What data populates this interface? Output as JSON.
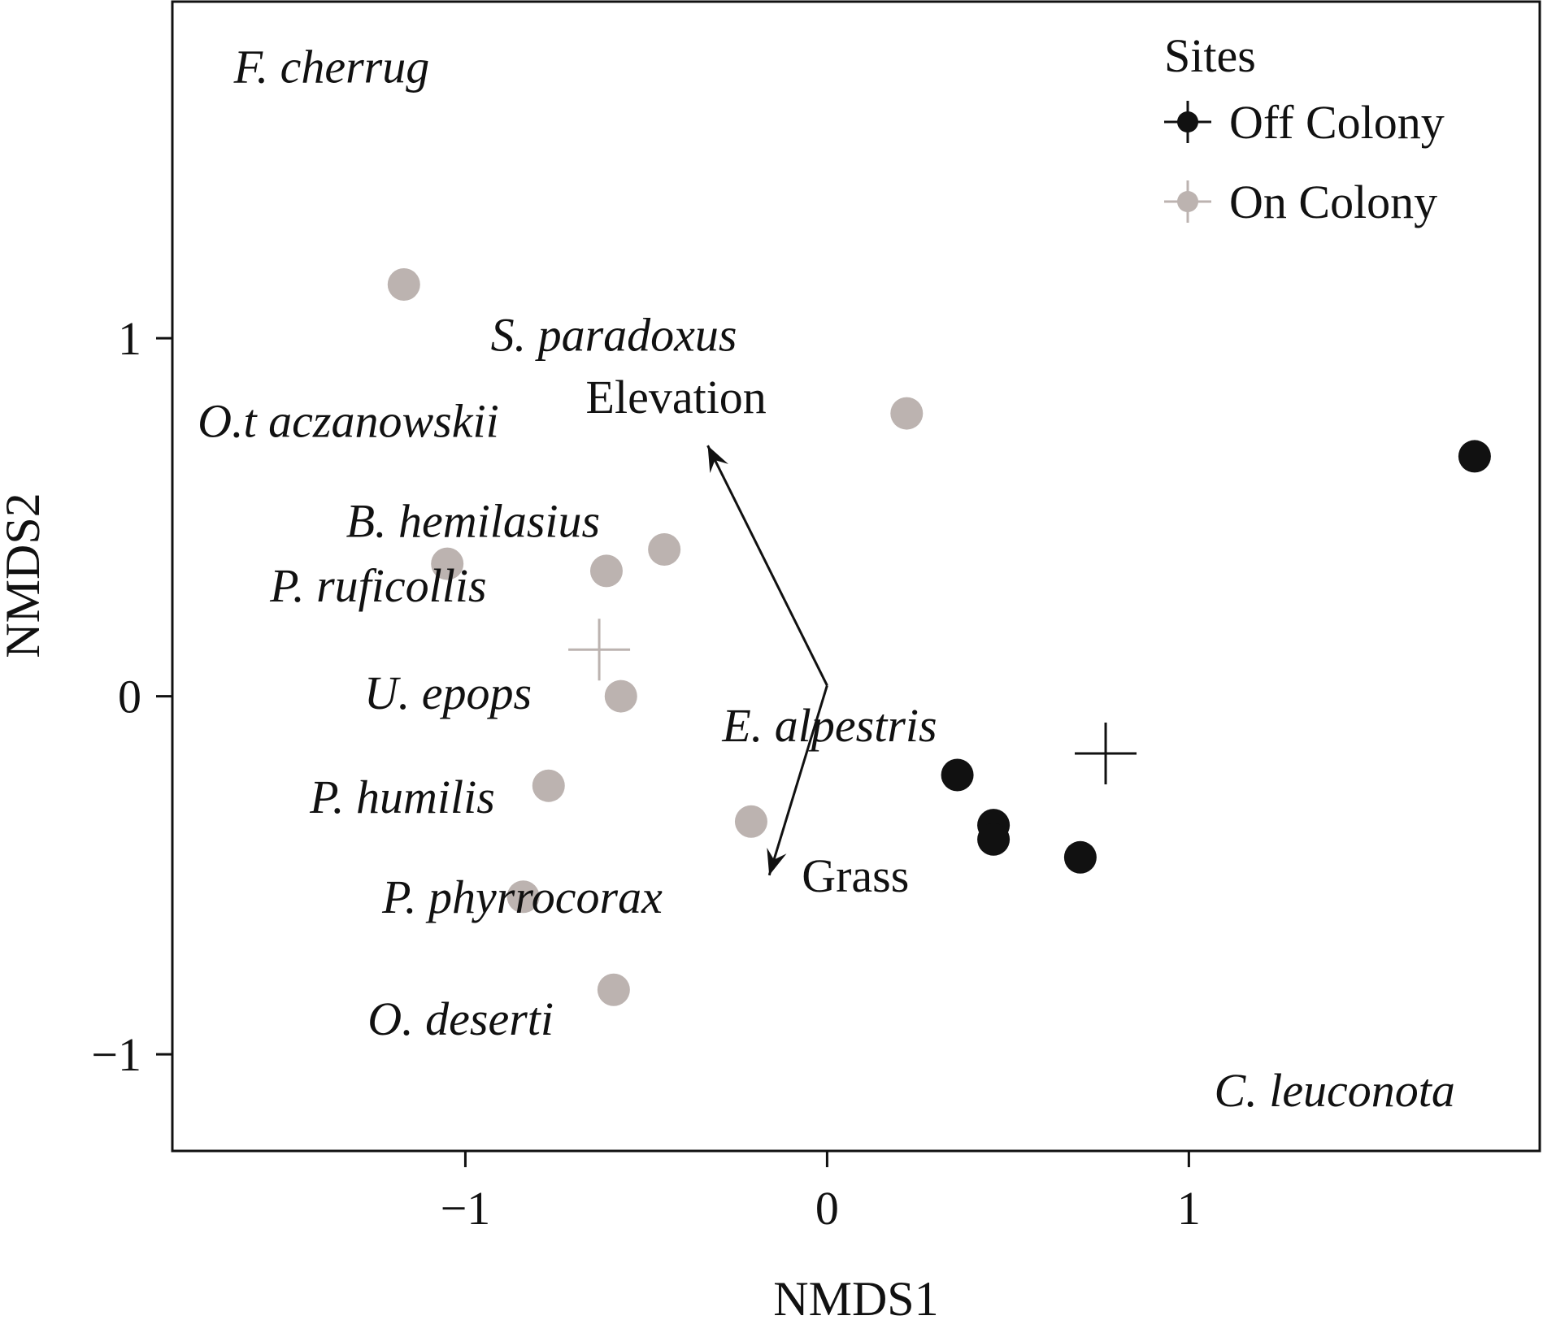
{
  "chart_data": {
    "type": "scatter",
    "xlabel": "NMDS1",
    "ylabel": "NMDS2",
    "xlim": [
      -1.81,
      1.97
    ],
    "ylim": [
      -1.27,
      1.94
    ],
    "x_ticks": [
      -1,
      0,
      1
    ],
    "y_ticks": [
      -1,
      0,
      1
    ],
    "x_tick_labels": [
      "−1",
      "0",
      "1"
    ],
    "y_tick_labels": [
      "−1",
      "0",
      "1"
    ],
    "grid": false,
    "legend": {
      "title": "Sites",
      "position": "top-right",
      "entries": [
        "Off Colony",
        "On Colony"
      ]
    },
    "series": [
      {
        "name": "Off Colony",
        "color": "#111111",
        "points": [
          {
            "x": 1.79,
            "y": 0.67
          },
          {
            "x": 0.36,
            "y": -0.22
          },
          {
            "x": 0.46,
            "y": -0.36
          },
          {
            "x": 0.46,
            "y": -0.4
          },
          {
            "x": 0.7,
            "y": -0.45
          }
        ],
        "centroid": {
          "x": 0.77,
          "y": -0.16
        }
      },
      {
        "name": "On Colony",
        "color": "#bcb3b0",
        "points": [
          {
            "x": -1.17,
            "y": 1.15
          },
          {
            "x": 0.22,
            "y": 0.79
          },
          {
            "x": -0.45,
            "y": 0.41
          },
          {
            "x": -0.61,
            "y": 0.35
          },
          {
            "x": -1.05,
            "y": 0.37
          },
          {
            "x": -0.57,
            "y": 0.0
          },
          {
            "x": -0.77,
            "y": -0.25
          },
          {
            "x": -0.21,
            "y": -0.35
          },
          {
            "x": -0.84,
            "y": -0.56
          },
          {
            "x": -0.59,
            "y": -0.82
          }
        ],
        "centroid": {
          "x": -0.63,
          "y": 0.13
        }
      }
    ],
    "vectors": [
      {
        "label": "Elevation",
        "from": [
          0,
          0.03
        ],
        "to": [
          -0.33,
          0.7
        ]
      },
      {
        "label": "Grass",
        "from": [
          0,
          0.03
        ],
        "to": [
          -0.16,
          -0.5
        ]
      }
    ],
    "species_labels": [
      {
        "text": "F. cherrug",
        "x": -1.64,
        "y": 1.76
      },
      {
        "text": "S. paradoxus",
        "x": -0.93,
        "y": 1.01
      },
      {
        "text": "O.t aczanowskii",
        "x": -1.74,
        "y": 0.77
      },
      {
        "text": "B. hemilasius",
        "x": -1.33,
        "y": 0.49
      },
      {
        "text": "P. ruficollis",
        "x": -1.54,
        "y": 0.31
      },
      {
        "text": "U. epops",
        "x": -1.28,
        "y": 0.01
      },
      {
        "text": "E. alpestris",
        "x": -0.29,
        "y": -0.08
      },
      {
        "text": "P. humilis",
        "x": -1.43,
        "y": -0.28
      },
      {
        "text": "P. phyrrocorax",
        "x": -1.23,
        "y": -0.56
      },
      {
        "text": "O. deserti",
        "x": -1.27,
        "y": -0.9
      },
      {
        "text": "C. leuconota",
        "x": 1.07,
        "y": -1.1
      }
    ]
  }
}
